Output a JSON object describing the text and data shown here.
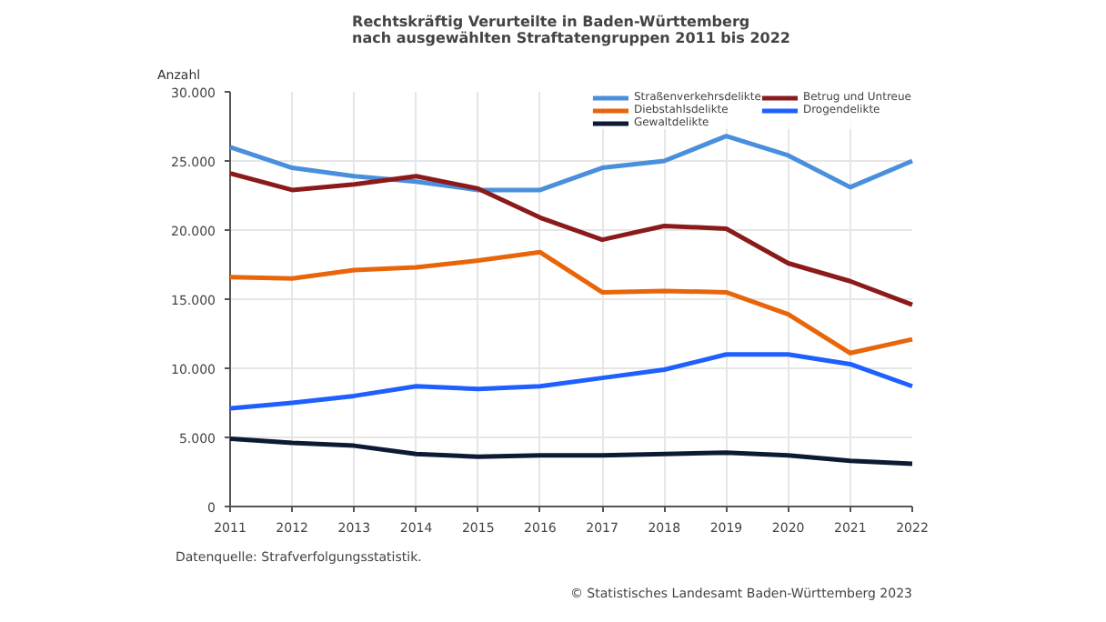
{
  "chart_data": {
    "type": "line",
    "title": "Rechtskräftig Verurteilte in Baden-Württemberg\nnach ausgewählten Straftatengruppen 2011 bis 2022",
    "ylabel": "Anzahl",
    "x": [
      2011,
      2012,
      2013,
      2014,
      2015,
      2016,
      2017,
      2018,
      2019,
      2020,
      2021,
      2022
    ],
    "series": [
      {
        "name": "Straßenverkehrsdelikte",
        "color": "#4a8fdc",
        "values": [
          26000,
          24500,
          23900,
          23500,
          22900,
          22900,
          24500,
          25000,
          26800,
          25400,
          23100,
          25000
        ]
      },
      {
        "name": "Betrug und Untreue",
        "color": "#8b1a1a",
        "values": [
          24100,
          22900,
          23300,
          23900,
          23000,
          20900,
          19300,
          20300,
          20100,
          17600,
          16300,
          14600
        ]
      },
      {
        "name": "Diebstahlsdelikte",
        "color": "#e8650a",
        "values": [
          16600,
          16500,
          17100,
          17300,
          17800,
          18400,
          15500,
          15600,
          15500,
          13900,
          11100,
          12100
        ]
      },
      {
        "name": "Drogendelikte",
        "color": "#1f5fff",
        "values": [
          7100,
          7500,
          8000,
          8700,
          8500,
          8700,
          9300,
          9900,
          11000,
          11000,
          10300,
          8700
        ]
      },
      {
        "name": "Gewaltdelikte",
        "color": "#0d1a33",
        "values": [
          4900,
          4600,
          4400,
          3800,
          3600,
          3700,
          3700,
          3800,
          3900,
          3700,
          3300,
          3100
        ]
      }
    ],
    "xlim": [
      2011,
      2022
    ],
    "xticks": [
      2011,
      2012,
      2013,
      2014,
      2015,
      2016,
      2017,
      2018,
      2019,
      2020,
      2021,
      2022
    ],
    "ylim": [
      0,
      30000
    ],
    "yticks": [
      0,
      {
        "value": 5000,
        "label": "5.000"
      },
      {
        "value": 10000,
        "label": "10.000"
      },
      {
        "value": 15000,
        "label": "15.000"
      },
      {
        "value": 20000,
        "label": "20.000"
      },
      {
        "value": 25000,
        "label": "25.000"
      },
      {
        "value": 30000,
        "label": "30.000"
      }
    ],
    "grid": true,
    "legend": "top right",
    "marker": "none",
    "line_style": "solid",
    "annotations": [
      "Datenquelle: Strafverfolgungsstatistik.",
      "© Statistisches Landesamt Baden-Württemberg 2023"
    ]
  }
}
